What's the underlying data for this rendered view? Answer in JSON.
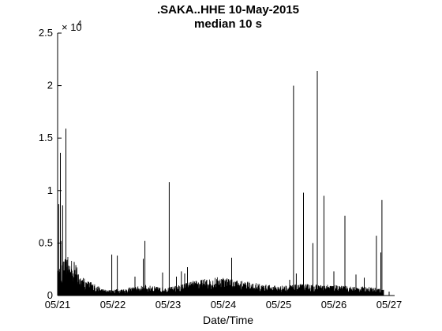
{
  "chart_data": {
    "type": "line",
    "title": ".SAKA..HHE 10-May-2015",
    "subtitle": "median 10 s",
    "xlabel": "Date/Time",
    "ylabel": "",
    "y_multiplier_label": "× 10",
    "y_multiplier_exponent": "4",
    "y_multiplier": 10000,
    "xlim": [
      0,
      6.1
    ],
    "ylim": [
      0,
      25000
    ],
    "x_ticks": [
      0,
      1,
      2,
      3,
      4,
      5,
      6
    ],
    "x_tick_labels": [
      "05/21",
      "05/22",
      "05/23",
      "05/24",
      "05/25",
      "05/26",
      "05/27"
    ],
    "y_ticks": [
      0,
      5000,
      10000,
      15000,
      20000,
      25000
    ],
    "y_tick_labels": [
      "0",
      "0.5",
      "1",
      "1.5",
      "2",
      "2.5"
    ],
    "line_color": "#000000",
    "series": [
      {
        "name": "",
        "spikes": [
          [
            0.02,
            8700
          ],
          [
            0.05,
            13600
          ],
          [
            0.06,
            5200
          ],
          [
            0.09,
            8600
          ],
          [
            0.15,
            15900
          ],
          [
            0.17,
            3400
          ],
          [
            0.3,
            3200
          ],
          [
            0.33,
            2900
          ],
          [
            0.98,
            3900
          ],
          [
            1.08,
            3800
          ],
          [
            1.4,
            1800
          ],
          [
            1.55,
            3500
          ],
          [
            1.58,
            5200
          ],
          [
            1.9,
            2200
          ],
          [
            2.02,
            10800
          ],
          [
            2.15,
            1800
          ],
          [
            2.24,
            2300
          ],
          [
            2.3,
            2100
          ],
          [
            2.35,
            2700
          ],
          [
            2.6,
            1200
          ],
          [
            3.15,
            3600
          ],
          [
            4.2,
            1500
          ],
          [
            4.27,
            20000
          ],
          [
            4.32,
            2100
          ],
          [
            4.45,
            9800
          ],
          [
            4.62,
            5000
          ],
          [
            4.7,
            21400
          ],
          [
            4.82,
            9500
          ],
          [
            5.0,
            2300
          ],
          [
            5.2,
            7600
          ],
          [
            5.4,
            2000
          ],
          [
            5.55,
            1700
          ],
          [
            5.77,
            5700
          ],
          [
            5.85,
            4100
          ],
          [
            5.87,
            9100
          ]
        ],
        "baseline": [
          [
            0.0,
            1400
          ],
          [
            0.1,
            2000
          ],
          [
            0.2,
            2200
          ],
          [
            0.3,
            1900
          ],
          [
            0.4,
            1300
          ],
          [
            0.5,
            900
          ],
          [
            0.6,
            800
          ],
          [
            0.7,
            600
          ],
          [
            0.8,
            400
          ],
          [
            0.9,
            300
          ],
          [
            1.0,
            350
          ],
          [
            1.2,
            400
          ],
          [
            1.4,
            500
          ],
          [
            1.6,
            600
          ],
          [
            1.8,
            500
          ],
          [
            2.0,
            450
          ],
          [
            2.2,
            600
          ],
          [
            2.4,
            800
          ],
          [
            2.6,
            900
          ],
          [
            2.8,
            1000
          ],
          [
            3.0,
            1100
          ],
          [
            3.2,
            900
          ],
          [
            3.4,
            800
          ],
          [
            3.6,
            700
          ],
          [
            3.8,
            600
          ],
          [
            4.0,
            550
          ],
          [
            4.2,
            600
          ],
          [
            4.4,
            650
          ],
          [
            4.6,
            650
          ],
          [
            4.8,
            600
          ],
          [
            5.0,
            600
          ],
          [
            5.2,
            550
          ],
          [
            5.4,
            500
          ],
          [
            5.6,
            500
          ],
          [
            5.8,
            450
          ],
          [
            6.0,
            300
          ],
          [
            6.1,
            200
          ]
        ]
      }
    ]
  }
}
